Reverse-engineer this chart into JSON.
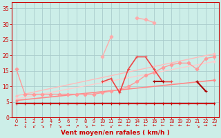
{
  "background_color": "#cceee8",
  "grid_color": "#aacccc",
  "xlabel": "Vent moyen/en rafales ( km/h )",
  "ylim": [
    0,
    37
  ],
  "yticks": [
    0,
    5,
    10,
    15,
    20,
    25,
    30,
    35
  ],
  "xlim": [
    -0.5,
    23.5
  ],
  "arrows": [
    "←",
    "↓",
    "↙",
    "↘",
    "↑",
    "↘",
    "→",
    "↗",
    "↘",
    "←",
    "←",
    "↙",
    "←",
    "←",
    "←",
    "←",
    "←",
    "←",
    "←",
    "←",
    "←",
    "↘",
    "→",
    "→"
  ],
  "series": [
    {
      "name": "flat_dark",
      "color": "#cc0000",
      "linewidth": 1.5,
      "markersize": 2.5,
      "marker": "+",
      "values": [
        4.5,
        4.5,
        4.5,
        4.5,
        4.5,
        4.5,
        4.5,
        4.5,
        4.5,
        4.5,
        4.5,
        4.5,
        4.5,
        4.5,
        4.5,
        4.5,
        4.5,
        4.5,
        4.5,
        4.5,
        4.5,
        4.5,
        4.5,
        4.5
      ]
    },
    {
      "name": "trend1_light",
      "color": "#ff9999",
      "linewidth": 1.0,
      "markersize": 2.5,
      "marker": "D",
      "values": [
        15.5,
        7.5,
        7.5,
        7.5,
        7.5,
        7.5,
        7.5,
        7.5,
        7.5,
        7.5,
        8.0,
        8.5,
        9.0,
        10.0,
        11.5,
        13.5,
        14.5,
        16.0,
        17.0,
        17.5,
        17.5,
        15.5,
        19.0,
        19.5
      ]
    },
    {
      "name": "trend2_light",
      "color": "#ffbbbb",
      "linewidth": 1.0,
      "markersize": 2.5,
      "marker": "D",
      "values": [
        null,
        null,
        null,
        null,
        null,
        null,
        null,
        null,
        null,
        null,
        null,
        null,
        null,
        null,
        null,
        null,
        null,
        null,
        null,
        null,
        null,
        null,
        null,
        null
      ]
    },
    {
      "name": "peaked_lightest",
      "color": "#ffaaaa",
      "linewidth": 1.0,
      "markersize": 2.5,
      "marker": "D",
      "values": [
        null,
        null,
        null,
        null,
        null,
        null,
        null,
        null,
        null,
        null,
        19.5,
        26.0,
        null,
        null,
        32.0,
        31.5,
        30.5,
        null,
        null,
        null,
        null,
        null,
        null,
        null
      ]
    },
    {
      "name": "medium_red_jagged",
      "color": "#ee4444",
      "linewidth": 1.2,
      "markersize": 2.5,
      "marker": "+",
      "values": [
        null,
        null,
        null,
        null,
        null,
        null,
        null,
        null,
        null,
        null,
        11.5,
        12.5,
        8.0,
        15.5,
        19.5,
        19.5,
        15.5,
        11.5,
        11.5,
        null,
        null,
        11.5,
        null,
        null
      ]
    },
    {
      "name": "dark_red_jagged",
      "color": "#aa0000",
      "linewidth": 1.5,
      "markersize": 3.0,
      "marker": "+",
      "values": [
        null,
        null,
        null,
        null,
        null,
        null,
        null,
        null,
        null,
        null,
        null,
        null,
        null,
        null,
        null,
        null,
        11.5,
        11.5,
        null,
        null,
        null,
        11.5,
        8.5,
        null
      ]
    }
  ],
  "trend_lines": [
    {
      "color": "#ffbbbb",
      "lw": 1.0,
      "x0": 0,
      "y0": 7.0,
      "x1": 23,
      "y1": 20.5
    },
    {
      "color": "#ffcccc",
      "lw": 1.0,
      "x0": 0,
      "y0": 6.0,
      "x1": 23,
      "y1": 18.0
    },
    {
      "color": "#ff8888",
      "lw": 1.2,
      "x0": 0,
      "y0": 5.5,
      "x1": 23,
      "y1": 12.0
    }
  ]
}
